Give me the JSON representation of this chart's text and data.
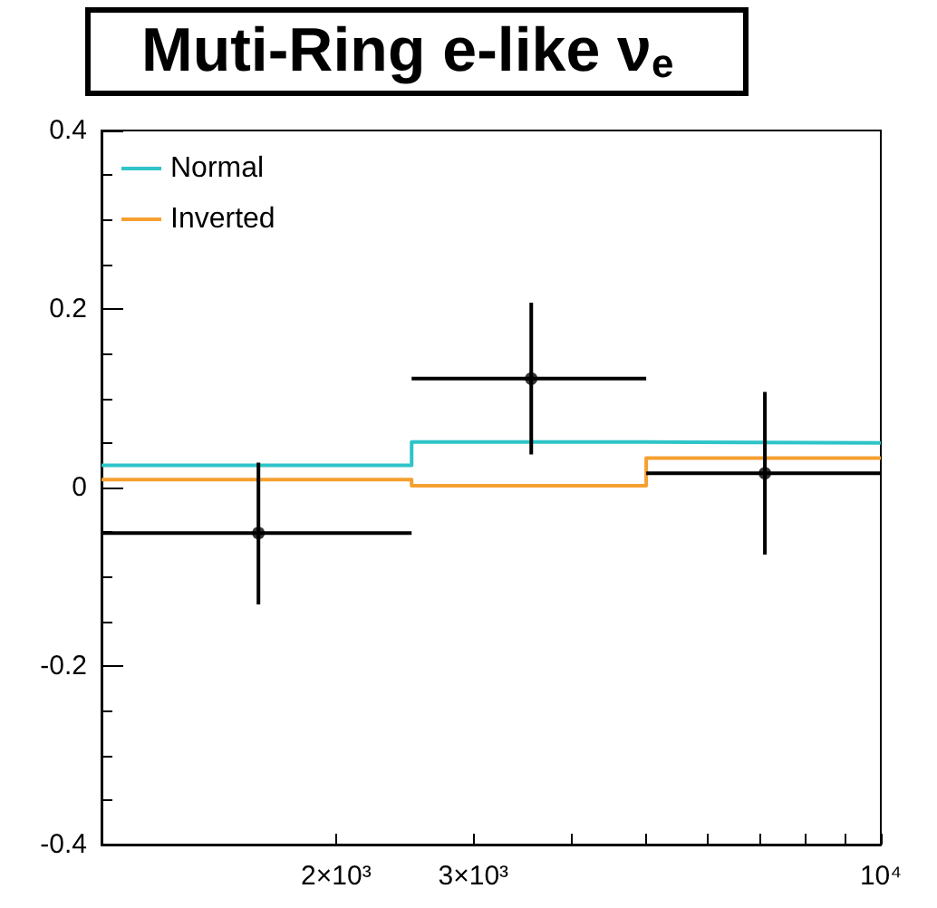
{
  "chart_data": {
    "type": "step",
    "title": "Muti-Ring e-like ν$_{e}$",
    "xlim": [
      1000,
      10000
    ],
    "log": "x",
    "xticks": [
      {
        "value": 2000,
        "label": "2×10³"
      },
      {
        "value": 3000,
        "label": "3×10³"
      },
      {
        "value": 4000,
        "label": null
      },
      {
        "value": 5000,
        "label": null
      },
      {
        "value": 6000,
        "label": null
      },
      {
        "value": 7000,
        "label": null
      },
      {
        "value": 8000,
        "label": null
      },
      {
        "value": 9000,
        "label": null
      },
      {
        "value": 10000,
        "label": "10⁴"
      }
    ],
    "ylim": [
      -0.4,
      0.4
    ],
    "yticks": [
      -0.4,
      -0.2,
      0,
      0.2,
      0.4
    ],
    "grid": false,
    "legend": "top left",
    "series": [
      {
        "name": "Normal",
        "color": "#2ec4c8",
        "x": [
          1000,
          2500,
          5000,
          10000
        ],
        "values": [
          0.025,
          0.051,
          0.05,
          0.05
        ]
      },
      {
        "name": "Inverted",
        "color": "#f5a030",
        "x": [
          1000,
          2500,
          5000,
          10000
        ],
        "values": [
          0.009,
          0.002,
          0.033,
          0.033
        ]
      },
      {
        "type": "scatter",
        "color": "#000000",
        "marker": "circle",
        "x": [
          1590,
          3560,
          7100
        ],
        "values": [
          -0.051,
          0.122,
          0.016
        ],
        "errors": [
          [
            -0.131,
            0.028
          ],
          [
            0.037,
            0.207
          ],
          [
            -0.075,
            0.107
          ]
        ],
        "xerrors": [
          [
            1000,
            2500
          ],
          [
            2500,
            5000
          ],
          [
            5000,
            10000
          ]
        ]
      }
    ]
  }
}
